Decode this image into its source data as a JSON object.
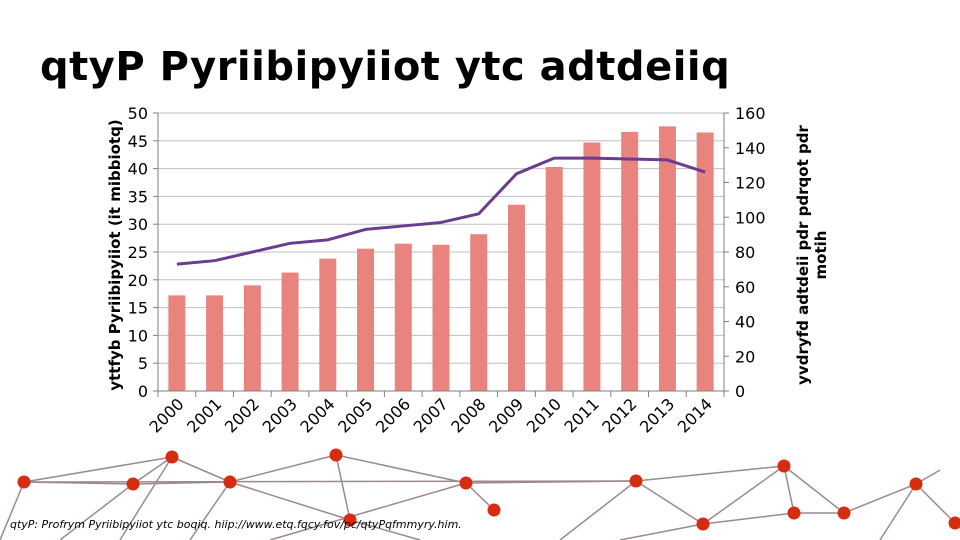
{
  "title": "qtyP Pyriibipyiiot ytc adtdeiiq",
  "source": "qtyP: Profrym Pyriibipyiiot ytc boqiq. hiip://www.etq.fqcy.fov/pc/qtyPqfmmyry.him.",
  "colors": {
    "bar": "#e8837e",
    "line": "#6a3d8f",
    "deco_line": "#9a8a8e",
    "deco_node": "#d62d10",
    "grid": "#bfbfbf"
  },
  "chart_data": {
    "type": "bar",
    "categories": [
      "2000",
      "2001",
      "2002",
      "2003",
      "2004",
      "2005",
      "2006",
      "2007",
      "2008",
      "2009",
      "2010",
      "2011",
      "2012",
      "2013",
      "2014"
    ],
    "series": [
      {
        "chart_type": "bar",
        "axis": "left",
        "values": [
          17.2,
          17.2,
          19.0,
          21.3,
          23.8,
          25.6,
          26.5,
          26.3,
          28.2,
          33.5,
          40.3,
          44.7,
          46.6,
          47.6,
          46.5
        ]
      },
      {
        "chart_type": "line",
        "axis": "right",
        "values": [
          73,
          75,
          80,
          85,
          87,
          93,
          95,
          97,
          102,
          125,
          134,
          134,
          133.5,
          133,
          126
        ]
      }
    ],
    "ylabel": "yttfyb Pyriibipyiiot  (it mibbiotq)",
    "ylabel_right": "yvdryfd adtdeii pdr pdrqot pdr motih",
    "ylim": [
      0,
      50
    ],
    "yticks": [
      "0",
      "5",
      "10",
      "15",
      "20",
      "25",
      "30",
      "35",
      "40",
      "45",
      "50"
    ],
    "ylim_right": [
      0,
      160
    ],
    "yticks_right": [
      "0",
      "20",
      "40",
      "60",
      "80",
      "100",
      "120",
      "140",
      "160"
    ],
    "grid": true,
    "legend": "none"
  }
}
